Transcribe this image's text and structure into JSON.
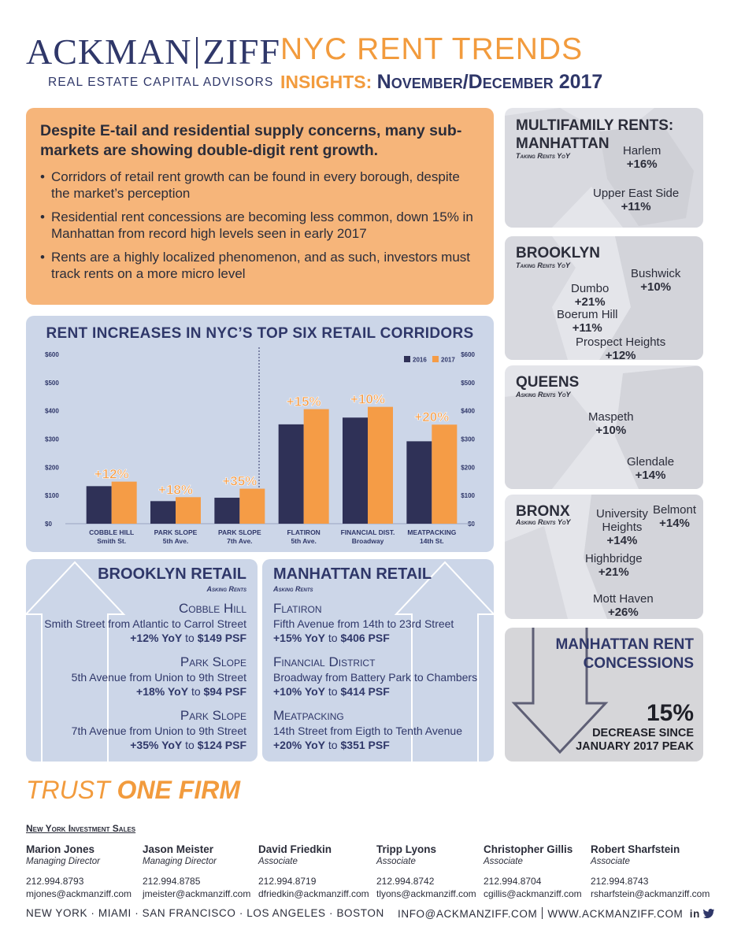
{
  "brand": {
    "name_left": "ACKMAN",
    "name_right": "ZIFF",
    "tagline": "REAL ESTATE CAPITAL ADVISORS"
  },
  "headline": {
    "title": "NYC RENT TRENDS",
    "insights_label": "INSIGHTS:",
    "period": "November/December 2017"
  },
  "summary": {
    "title": "Despite E-tail and residential supply concerns, many sub-markets are showing double-digit rent growth.",
    "bullets": [
      "Corridors of retail rent growth can be found in every borough, despite the market’s perception",
      "Residential rent concessions are becoming less common, down 15% in Manhattan from record high levels seen in early 2017",
      "Rents are a highly localized phenomenon, and as such, investors must track rents on a more micro level"
    ]
  },
  "chart_data": {
    "type": "bar",
    "title": "RENT INCREASES IN NYC’S TOP SIX RETAIL CORRIDORS",
    "categories": [
      "COBBLE HILL",
      "PARK SLOPE",
      "PARK SLOPE",
      "FLATIRON",
      "FINANCIAL DIST.",
      "MEATPACKING"
    ],
    "subcategories": [
      "Smith St.",
      "5th Ave.",
      "7th Ave.",
      "5th Ave.",
      "Broadway",
      "14th St."
    ],
    "series": [
      {
        "name": "2016",
        "color": "#2f3157",
        "values": [
          133,
          80,
          92,
          352,
          376,
          292
        ]
      },
      {
        "name": "2017",
        "color": "#f59c46",
        "values": [
          149,
          94,
          124,
          406,
          414,
          351
        ]
      }
    ],
    "growth_labels": [
      "+12%",
      "+18%",
      "+35%",
      "+15%",
      "+10%",
      "+20%"
    ],
    "yticks": [
      "$0",
      "$100",
      "$200",
      "$300",
      "$400",
      "$500",
      "$600"
    ],
    "ylim": [
      0,
      600
    ],
    "legend": "top-right",
    "grid": false
  },
  "brooklyn_retail": {
    "title": "BROOKLYN RETAIL",
    "tag": "Asking Rents",
    "entries": [
      {
        "name": "Cobble Hill",
        "desc": "Smith Street from Atlantic to Carrol Street",
        "stat": "+12% YoY",
        "to": "to",
        "psf": "$149 PSF"
      },
      {
        "name": "Park Slope",
        "desc": "5th Avenue from Union to 9th Street",
        "stat": "+18% YoY",
        "to": "to",
        "psf": "$94 PSF"
      },
      {
        "name": "Park Slope",
        "desc": "7th Avenue from Union to 9th Street",
        "stat": "+35% YoY",
        "to": "to",
        "psf": "$124 PSF"
      }
    ]
  },
  "manhattan_retail": {
    "title": "MANHATTAN RETAIL",
    "tag": "Asking Rents",
    "entries": [
      {
        "name": "Flatiron",
        "desc": "Fifth Avenue from 14th to 23rd Street",
        "stat": "+15% YoY",
        "to": "to",
        "psf": "$406 PSF"
      },
      {
        "name": "Financial District",
        "desc": "Broadway from Battery Park to Chambers",
        "stat": "+10% YoY",
        "to": "to",
        "psf": "$414 PSF"
      },
      {
        "name": "Meatpacking",
        "desc": "14th Street from Eigth to Tenth Avenue",
        "stat": "+20% YoY",
        "to": "to",
        "psf": "$351 PSF"
      }
    ]
  },
  "multifamily": {
    "title": "MULTIFAMILY RENTS:",
    "manhattan": {
      "name": "MANHATTAN",
      "tag": "Taking Rents YoY",
      "hoods": [
        {
          "name": "Harlem",
          "value": "+16%"
        },
        {
          "name": "Upper East Side",
          "value": "+11%"
        }
      ]
    },
    "brooklyn": {
      "name": "BROOKLYN",
      "tag": "Taking Rents YoY",
      "hoods": [
        {
          "name": "Bushwick",
          "value": "+10%"
        },
        {
          "name": "Dumbo",
          "value": "+21%"
        },
        {
          "name": "Boerum Hill",
          "value": "+11%"
        },
        {
          "name": "Prospect Heights",
          "value": "+12%"
        }
      ]
    },
    "queens": {
      "name": "QUEENS",
      "tag": "Asking Rents YoY",
      "hoods": [
        {
          "name": "Maspeth",
          "value": "+10%"
        },
        {
          "name": "Glendale",
          "value": "+14%"
        }
      ]
    },
    "bronx": {
      "name": "BRONX",
      "tag": "Asking Rents YoY",
      "hoods": [
        {
          "name": "Belmont",
          "value": "+14%"
        },
        {
          "name": "University",
          "name2": "Heights",
          "value": "+14%"
        },
        {
          "name": "Highbridge",
          "value": "+21%"
        },
        {
          "name": "Mott Haven",
          "value": "+26%"
        }
      ]
    }
  },
  "concessions": {
    "title_line1": "MANHATTAN RENT",
    "title_line2": "CONCESSIONS",
    "percent": "15%",
    "desc_line1": "DECREASE SINCE",
    "desc_line2": "JANUARY 2017 PEAK"
  },
  "trust": {
    "part1": "TRUST",
    "part2": "ONE FIRM"
  },
  "team": {
    "heading": "New York Investment Sales",
    "members": [
      {
        "name": "Marion Jones",
        "title": "Managing Director",
        "phone": "212.994.8793",
        "email": "mjones@ackmanziff.com"
      },
      {
        "name": "Jason Meister",
        "title": "Managing Director",
        "phone": "212.994.8785",
        "email": "jmeister@ackmanziff.com"
      },
      {
        "name": "David Friedkin",
        "title": "Associate",
        "phone": "212.994.8719",
        "email": "dfriedkin@ackmanziff.com"
      },
      {
        "name": "Tripp Lyons",
        "title": "Associate",
        "phone": "212.994.8742",
        "email": "tlyons@ackmanziff.com"
      },
      {
        "name": "Christopher Gillis",
        "title": "Associate",
        "phone": "212.994.8704",
        "email": "cgillis@ackmanziff.com"
      },
      {
        "name": "Robert Sharfstein",
        "title": "Associate",
        "phone": "212.994.8743",
        "email": "rsharfstein@ackmanziff.com"
      }
    ]
  },
  "footer": {
    "cities": "NEW YORK · MIAMI · SAN FRANCISCO · LOS ANGELES · BOSTON",
    "email": "INFO@ACKMANZIFF.COM",
    "website": "WWW.ACKMANZIFF.COM",
    "linkedin": "in",
    "twitter_icon": "twitter-icon"
  },
  "colors": {
    "navy": "#2f3769",
    "orange": "#f29b3d",
    "summary_bg": "#f6b57a",
    "panel_bg": "#ccd6e8",
    "map_bg": "#e4e5ea"
  }
}
